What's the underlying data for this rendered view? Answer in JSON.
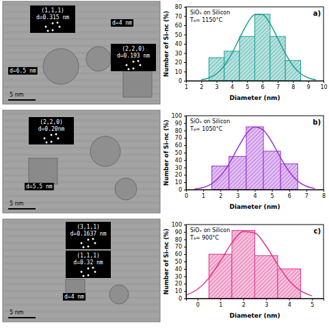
{
  "chart_data": [
    {
      "type": "histogram",
      "panel_label": "a)",
      "title": "SiOₓ on Silicon",
      "subtitle": "Tₐ= 1150°C",
      "x_label": "Diameter (nm)",
      "y_label": "Number of Si-nc (%)",
      "bins": [
        2.5,
        3.5,
        4.5,
        5.5,
        6.5,
        7.5,
        8.5
      ],
      "values": [
        25,
        32,
        48,
        72,
        48,
        22
      ],
      "fit": {
        "x": [
          2,
          2.5,
          3,
          3.5,
          4,
          4.5,
          5,
          5.5,
          6,
          6.5,
          7,
          7.5,
          8,
          8.5,
          9,
          9.5
        ],
        "y": [
          1.1,
          3.2,
          7.8,
          16.3,
          29.5,
          46,
          61.8,
          71.6,
          71.6,
          61.8,
          46,
          29.5,
          16.3,
          7.8,
          3.2,
          1.1
        ]
      },
      "color": "#1b9e94",
      "grid": false,
      "xlim": [
        1,
        10
      ],
      "xticks": [
        1,
        2,
        3,
        4,
        5,
        6,
        7,
        8,
        9,
        10
      ],
      "ylim": [
        0,
        80
      ],
      "yticks": [
        0,
        10,
        20,
        30,
        40,
        50,
        60,
        70,
        80
      ]
    },
    {
      "type": "histogram",
      "panel_label": "b)",
      "title": "SiOₓ on Silicon",
      "subtitle": "Tₐ= 1050°C",
      "x_label": "Diameter (nm)",
      "y_label": "Number of Si-nc (%)",
      "bins": [
        1.5,
        2.5,
        3.5,
        4.5,
        5.5,
        6.5
      ],
      "values": [
        32,
        45,
        85,
        52,
        35
      ],
      "fit": {
        "x": [
          0.5,
          1,
          1.5,
          2,
          2.5,
          3,
          3.5,
          4,
          4.5,
          5,
          5.5,
          6,
          6.5,
          7,
          7.5
        ],
        "y": [
          0.9,
          3.0,
          8.1,
          18.4,
          34.9,
          55.8,
          75.0,
          84.7,
          80.4,
          64.2,
          43.0,
          24.3,
          11.5,
          4.6,
          1.5
        ]
      },
      "color": "#9b30d6",
      "grid": false,
      "xlim": [
        0,
        8
      ],
      "xticks": [
        0,
        1,
        2,
        3,
        4,
        5,
        6,
        7,
        8
      ],
      "ylim": [
        0,
        100
      ],
      "yticks": [
        0,
        10,
        20,
        30,
        40,
        50,
        60,
        70,
        80,
        90,
        100
      ]
    },
    {
      "type": "histogram",
      "panel_label": "c)",
      "title": "SiOₓ on Silicon",
      "subtitle": "Tₐ= 900°C",
      "x_label": "Diameter (nm)",
      "y_label": "Number of Si-nc (%)",
      "bins": [
        0.5,
        1.5,
        2.5,
        3.5,
        4.5
      ],
      "values": [
        60,
        92,
        58,
        40
      ],
      "fit": {
        "x": [
          -0.5,
          0,
          0.5,
          1,
          1.5,
          2,
          2.5,
          3,
          3.5,
          4,
          4.5,
          5
        ],
        "y": [
          4.5,
          12.5,
          27.9,
          50.7,
          75.1,
          90.5,
          88.6,
          70.6,
          45.7,
          24.1,
          10.3,
          3.6
        ]
      },
      "color": "#e0338a",
      "grid": false,
      "xlim": [
        -0.5,
        5.5
      ],
      "xticks": [
        0,
        1,
        2,
        3,
        4,
        5
      ],
      "ylim": [
        0,
        100
      ],
      "yticks": [
        0,
        10,
        20,
        30,
        40,
        50,
        60,
        70,
        80,
        90,
        100
      ]
    }
  ],
  "micrographs": [
    {
      "insets": [
        {
          "plane": "(1,1,1)",
          "spacing": "d=0.315 nm"
        },
        {
          "plane": "(2,2,0)",
          "spacing": "d=0.193 nm"
        }
      ],
      "sizes": [
        "d=4 nm",
        "d=6.5 nm"
      ],
      "scale_bar": "5 nm"
    },
    {
      "insets": [
        {
          "plane": "(2,2,0)",
          "spacing": "d=0.20nm"
        }
      ],
      "sizes": [
        "d=5.5 nm"
      ],
      "scale_bar": "5 nm"
    },
    {
      "insets": [
        {
          "plane": "(3,1,1)",
          "spacing": "d=0.1637 nm"
        },
        {
          "plane": "(1,1,1)",
          "spacing": "d=0.32 nm"
        }
      ],
      "sizes": [
        "d=4 nm"
      ],
      "scale_bar": "5 nm"
    }
  ]
}
